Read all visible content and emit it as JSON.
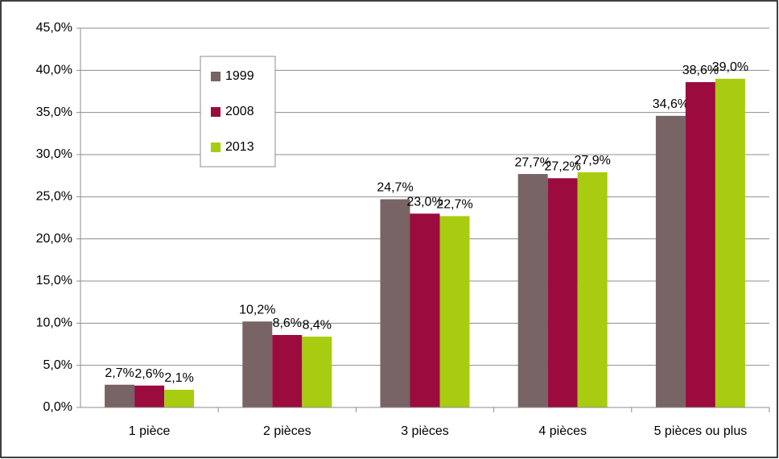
{
  "chart_data": {
    "type": "bar",
    "categories": [
      "1 pièce",
      "2 pièces",
      "3 pièces",
      "4 pièces",
      "5 pièces ou plus"
    ],
    "series": [
      {
        "name": "1999",
        "color": "#786365",
        "values": [
          2.7,
          10.2,
          24.7,
          27.7,
          34.6
        ],
        "value_labels": [
          "2,7%",
          "10,2%",
          "24,7%",
          "27,7%",
          "34,6%"
        ]
      },
      {
        "name": "2008",
        "color": "#9b0b3e",
        "values": [
          2.6,
          8.6,
          23.0,
          27.2,
          38.6
        ],
        "value_labels": [
          "2,6%",
          "8,6%",
          "23,0%",
          "27,2%",
          "38,6%"
        ]
      },
      {
        "name": "2013",
        "color": "#a8cc0f",
        "values": [
          2.1,
          8.4,
          22.7,
          27.9,
          39.0
        ],
        "value_labels": [
          "2,1%",
          "8,4%",
          "22,7%",
          "27,9%",
          "39,0%"
        ]
      }
    ],
    "ylim": [
      0,
      45
    ],
    "yticks": [
      {
        "value": 0,
        "label": "0,0%"
      },
      {
        "value": 5,
        "label": "5,0%"
      },
      {
        "value": 10,
        "label": "10,0%"
      },
      {
        "value": 15,
        "label": "15,0%"
      },
      {
        "value": 20,
        "label": "20,0%"
      },
      {
        "value": 25,
        "label": "25,0%"
      },
      {
        "value": 30,
        "label": "30,0%"
      },
      {
        "value": 35,
        "label": "35,0%"
      },
      {
        "value": 40,
        "label": "40,0%"
      },
      {
        "value": 45,
        "label": "45,0%"
      }
    ],
    "grid": true,
    "legend": "upper left"
  }
}
